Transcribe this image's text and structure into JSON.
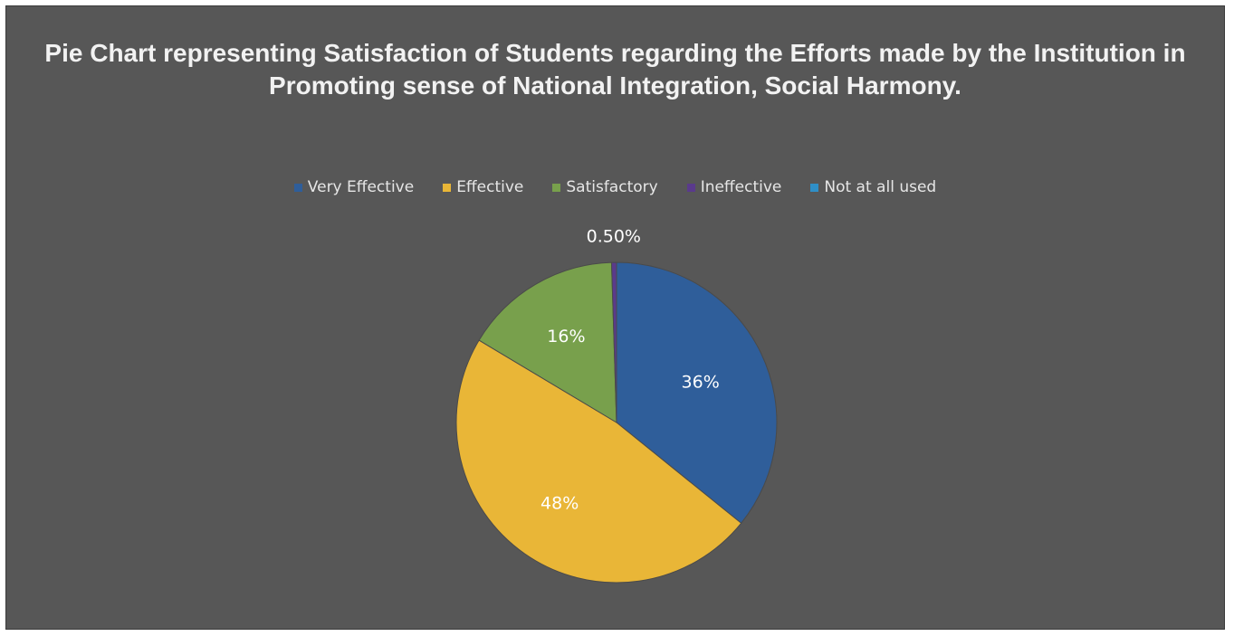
{
  "chart_data": {
    "type": "pie",
    "title": "Pie Chart representing Satisfaction of Students regarding the Efforts made by the Institution in Promoting sense of National Integration, Social Harmony.",
    "legend_position": "top",
    "slices": [
      {
        "name": "Very Effective",
        "value": 36,
        "label": "36%",
        "color": "#2f5e9a"
      },
      {
        "name": "Effective",
        "value": 48,
        "label": "48%",
        "color": "#e9b637"
      },
      {
        "name": "Satisfactory",
        "value": 16,
        "label": "16%",
        "color": "#78a04c"
      },
      {
        "name": "Ineffective",
        "value": 0.5,
        "label": "0.50%",
        "color": "#5a3a8c"
      },
      {
        "name": "Not at all used",
        "value": 0,
        "label": "",
        "color": "#2f8fc7"
      }
    ]
  }
}
